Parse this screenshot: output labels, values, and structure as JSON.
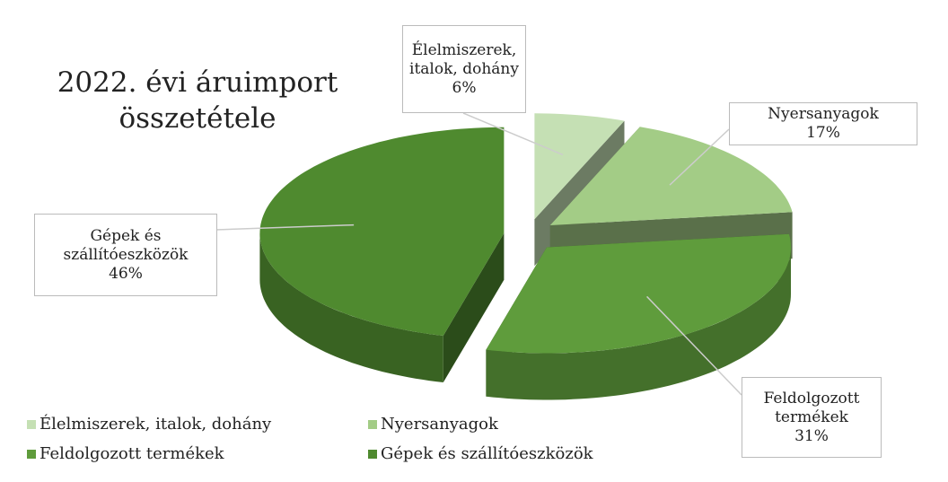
{
  "chart_data": {
    "type": "pie",
    "title": "2022. évi áruimport összetétele",
    "categories": [
      "Élelmiszerek, italok, dohány",
      "Nyersanyagok",
      "Feldolgozott termékek",
      "Gépek és szállítóeszközök"
    ],
    "values": [
      6,
      17,
      31,
      46
    ],
    "value_labels": [
      "6%",
      "17%",
      "31%",
      "46%"
    ],
    "colors": [
      "#c5e0b4",
      "#a3cc86",
      "#5f9c3c",
      "#4f8a2f"
    ],
    "legend": "bottom"
  }
}
